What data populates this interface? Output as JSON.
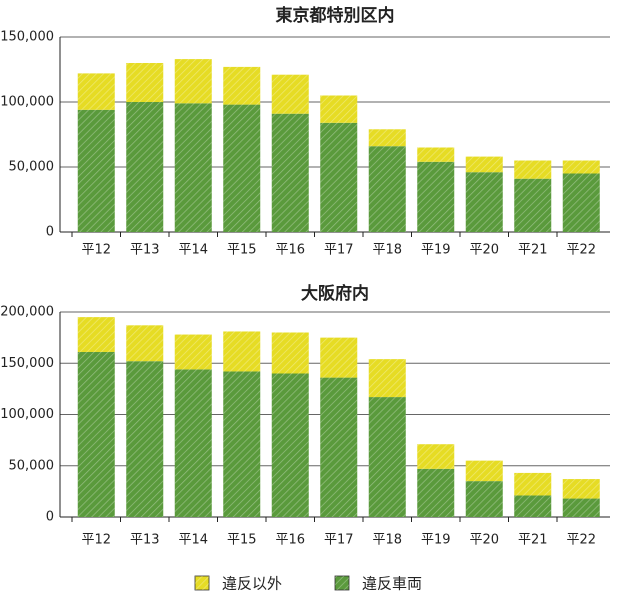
{
  "chart_data": [
    {
      "type": "bar",
      "stacked": true,
      "title": "東京都特別区内",
      "categories": [
        "平12",
        "平13",
        "平14",
        "平15",
        "平16",
        "平17",
        "平18",
        "平19",
        "平20",
        "平21",
        "平22"
      ],
      "series": [
        {
          "name": "違反車両",
          "color": "#5a9a3c",
          "values": [
            94000,
            100000,
            99000,
            98000,
            91000,
            84000,
            66000,
            54000,
            46000,
            41000,
            45000
          ]
        },
        {
          "name": "違反以外",
          "color": "#e6dc24",
          "values": [
            28000,
            30000,
            34000,
            29000,
            30000,
            21000,
            13000,
            11000,
            12000,
            14000,
            10000
          ]
        }
      ],
      "ylim": [
        0,
        150000
      ],
      "yticks": [
        0,
        {
          "value": 50000,
          "label": "50,000"
        },
        {
          "value": 100000,
          "label": "100,000"
        },
        {
          "value": 150000,
          "label": "150,000"
        }
      ],
      "grid": true
    },
    {
      "type": "bar",
      "stacked": true,
      "title": "大阪府内",
      "categories": [
        "平12",
        "平13",
        "平14",
        "平15",
        "平16",
        "平17",
        "平18",
        "平19",
        "平20",
        "平21",
        "平22"
      ],
      "series": [
        {
          "color": "#5a9a3c",
          "values": [
            161000,
            152000,
            144000,
            142000,
            140000,
            136000,
            117000,
            47000,
            35000,
            21000,
            18000
          ]
        },
        {
          "color": "#e6dc24",
          "values": [
            34000,
            35000,
            34000,
            39000,
            40000,
            39000,
            37000,
            24000,
            20000,
            22000,
            19000
          ]
        }
      ],
      "ylim": [
        0,
        200000
      ],
      "yticks": [
        0,
        {
          "value": 50000,
          "label": "50,000"
        },
        {
          "value": 100000,
          "label": "100,000"
        },
        {
          "value": 150000,
          "label": "150,000"
        },
        {
          "value": 200000,
          "label": "200,000"
        }
      ],
      "grid": true
    }
  ]
}
